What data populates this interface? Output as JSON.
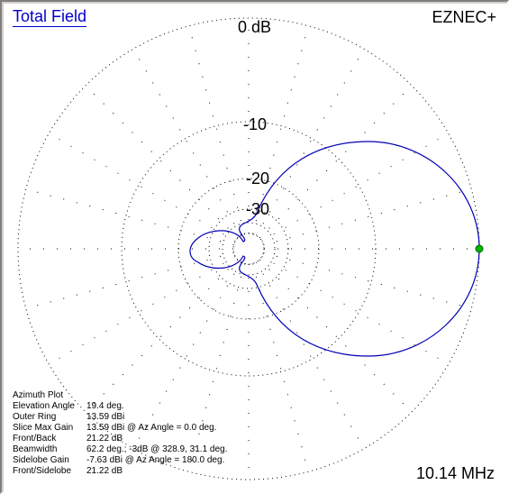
{
  "header": {
    "title": "Total Field",
    "brand": "EZNEC+"
  },
  "rings": {
    "outer": "0 dB",
    "r10": "-10",
    "r20": "-20",
    "r30": "-30"
  },
  "frequency": "10.14 MHz",
  "info": {
    "heading": "Azimuth Plot",
    "rows": [
      {
        "label": "Elevation Angle",
        "value": "19.4 deg."
      },
      {
        "label": "Outer Ring",
        "value": "13.59 dBi"
      },
      {
        "label": "Slice Max Gain",
        "value": "13.59 dBi @ Az Angle = 0.0 deg."
      },
      {
        "label": "Front/Back",
        "value": "21.22 dB"
      },
      {
        "label": "Beamwidth",
        "value": "62.2 deg.; -3dB @ 328.9, 31.1 deg."
      },
      {
        "label": "Sidelobe Gain",
        "value": "-7.63 dBi @ Az Angle = 180.0 deg."
      },
      {
        "label": "Front/Sidelobe",
        "value": "21.22 dB"
      }
    ]
  },
  "colors": {
    "pattern": "#0000b4",
    "max_marker": "#00b400",
    "grid": "#000000",
    "title": "#0000cc"
  }
}
